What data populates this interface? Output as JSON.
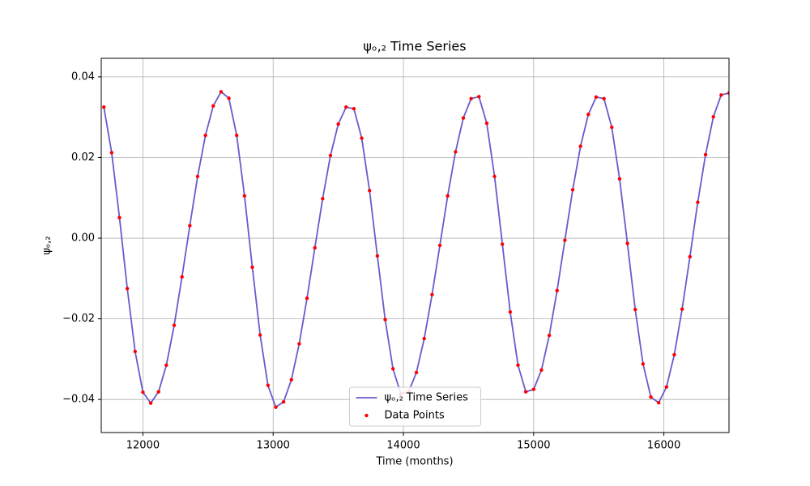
{
  "chart_data": {
    "type": "line",
    "title": "ψₒ,₂ Time Series",
    "x_label": "Time (months)",
    "y_label": "ψₒ,₂",
    "x": [
      11700,
      11760,
      11820,
      11880,
      11940,
      12000,
      12060,
      12120,
      12180,
      12240,
      12300,
      12360,
      12420,
      12480,
      12540,
      12600,
      12660,
      12720,
      12780,
      12840,
      12900,
      12960,
      13020,
      13080,
      13140,
      13200,
      13260,
      13320,
      13380,
      13440,
      13500,
      13560,
      13620,
      13680,
      13740,
      13800,
      13860,
      13920,
      13980,
      14040,
      14100,
      14160,
      14220,
      14280,
      14340,
      14400,
      14460,
      14520,
      14580,
      14640,
      14700,
      14760,
      14820,
      14880,
      14940,
      15000,
      15060,
      15120,
      15180,
      15240,
      15300,
      15360,
      15420,
      15480,
      15540,
      15600,
      15660,
      15720,
      15780,
      15840,
      15900,
      15960,
      16020,
      16080,
      16140,
      16200,
      16260,
      16320,
      16380,
      16440,
      16500
    ],
    "series": [
      {
        "name": "ψₒ,₂ Time Series",
        "color": "#6a5acd",
        "mode": "line",
        "values": [
          0.0325,
          0.0212,
          0.0051,
          -0.0125,
          -0.0281,
          -0.0382,
          -0.0409,
          -0.0381,
          -0.0315,
          -0.0216,
          -0.0096,
          0.0031,
          0.0153,
          0.0255,
          0.0328,
          0.0363,
          0.0347,
          0.0255,
          0.0105,
          -0.0072,
          -0.024,
          -0.0365,
          -0.0419,
          -0.0406,
          -0.0351,
          -0.0262,
          -0.0149,
          -0.0024,
          0.0098,
          0.0205,
          0.0283,
          0.0325,
          0.0321,
          0.0248,
          0.0118,
          -0.0044,
          -0.0202,
          -0.0324,
          -0.0386,
          -0.0381,
          -0.0333,
          -0.0249,
          -0.014,
          -0.0018,
          0.0105,
          0.0214,
          0.0298,
          0.0346,
          0.0351,
          0.0285,
          0.0153,
          -0.0015,
          -0.0183,
          -0.0315,
          -0.0381,
          -0.0375,
          -0.0327,
          -0.0241,
          -0.013,
          -0.0005,
          0.012,
          0.0228,
          0.0307,
          0.035,
          0.0346,
          0.0275,
          0.0147,
          -0.0013,
          -0.0177,
          -0.0312,
          -0.0394,
          -0.0408,
          -0.0369,
          -0.0289,
          -0.0176,
          -0.0046,
          0.0089,
          0.0207,
          0.0301,
          0.0355,
          0.036
        ]
      },
      {
        "name": "Data Points",
        "color": "#ff0000",
        "mode": "scatter",
        "values": [
          0.0325,
          0.0212,
          0.0051,
          -0.0125,
          -0.0281,
          -0.0382,
          -0.0409,
          -0.0381,
          -0.0315,
          -0.0216,
          -0.0096,
          0.0031,
          0.0153,
          0.0255,
          0.0328,
          0.0363,
          0.0347,
          0.0255,
          0.0105,
          -0.0072,
          -0.024,
          -0.0365,
          -0.0419,
          -0.0406,
          -0.0351,
          -0.0262,
          -0.0149,
          -0.0024,
          0.0098,
          0.0205,
          0.0283,
          0.0325,
          0.0321,
          0.0248,
          0.0118,
          -0.0044,
          -0.0202,
          -0.0324,
          -0.0386,
          -0.0381,
          -0.0333,
          -0.0249,
          -0.014,
          -0.0018,
          0.0105,
          0.0214,
          0.0298,
          0.0346,
          0.0351,
          0.0285,
          0.0153,
          -0.0015,
          -0.0183,
          -0.0315,
          -0.0381,
          -0.0375,
          -0.0327,
          -0.0241,
          -0.013,
          -0.0005,
          0.012,
          0.0228,
          0.0307,
          0.035,
          0.0346,
          0.0275,
          0.0147,
          -0.0013,
          -0.0177,
          -0.0312,
          -0.0394,
          -0.0408,
          -0.0369,
          -0.0289,
          -0.0176,
          -0.0046,
          0.0089,
          0.0207,
          0.0301,
          0.0355,
          0.036
        ]
      }
    ],
    "xlim": [
      11680,
      16500
    ],
    "ylim": [
      -0.0482,
      0.0446
    ],
    "xticks": [
      12000,
      13000,
      14000,
      15000,
      16000
    ],
    "yticks": [
      {
        "value": -0.04,
        "label": "−0.04"
      },
      {
        "value": -0.02,
        "label": "−0.02"
      },
      {
        "value": 0,
        "label": "0.00"
      },
      {
        "value": 0.02,
        "label": "0.02"
      },
      {
        "value": 0.04,
        "label": "0.04"
      }
    ],
    "grid": true,
    "legend": "lower center"
  }
}
